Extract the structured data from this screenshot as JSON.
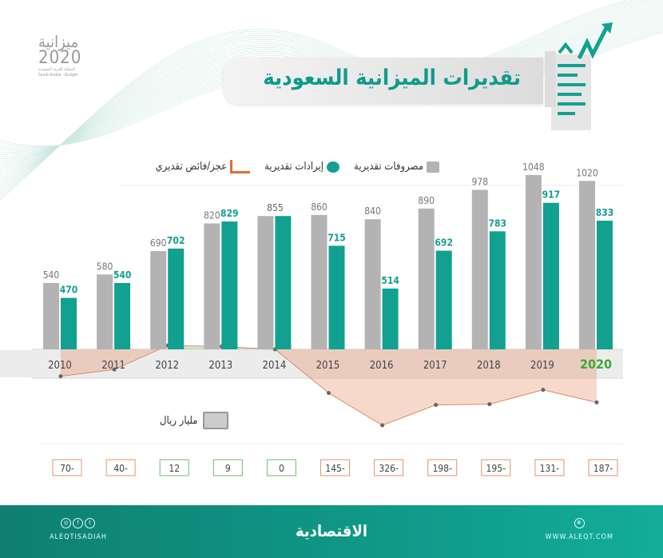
{
  "header": {
    "title": "تقديرات الميزانية السعودية",
    "logo_line1": "ميزانية",
    "logo_line2": "2020",
    "logo_line3": "المملكة العربية السعودية",
    "logo_line4": "Saudi Arabia - Budget"
  },
  "legend": {
    "expenses": "مصروفات تقديرية",
    "revenues": "إيرادات تقديرية",
    "balance": "عجز/فائض تقديري"
  },
  "unit": "مليار ريال",
  "footer": {
    "brand": "الاقتصادية",
    "social": "ALEQTISADIAH",
    "website": "WWW.ALEQT.COM"
  },
  "colors": {
    "expenses": "#b3b3b3",
    "revenues": "#12a190",
    "deficit": "#e8926a",
    "surplus": "#6cc06c",
    "highlight_year": "#3aaa35"
  },
  "chart_data": {
    "type": "bar",
    "categories": [
      "2010",
      "2011",
      "2012",
      "2013",
      "2014",
      "2015",
      "2016",
      "2017",
      "2018",
      "2019",
      "2020"
    ],
    "series": [
      {
        "name": "مصروفات تقديرية",
        "values": [
          540,
          580,
          690,
          820,
          855,
          860,
          840,
          890,
          978,
          1048,
          1020
        ]
      },
      {
        "name": "إيرادات تقديرية",
        "values": [
          470,
          540,
          702,
          829,
          855,
          715,
          514,
          692,
          783,
          917,
          833
        ]
      }
    ],
    "balance": {
      "name": "عجز/فائض تقديري",
      "type": "line",
      "values": [
        -70,
        -40,
        12,
        9,
        0,
        -145,
        -326,
        -198,
        -195,
        -131,
        -187
      ],
      "labels": [
        "70-",
        "40-",
        "12",
        "9",
        "0",
        "145-",
        "326-",
        "198-",
        "195-",
        "131-",
        "187-"
      ]
    },
    "merged_label_category": "2014",
    "highlight_category": "2020",
    "ylim": [
      228,
      1060
    ]
  }
}
